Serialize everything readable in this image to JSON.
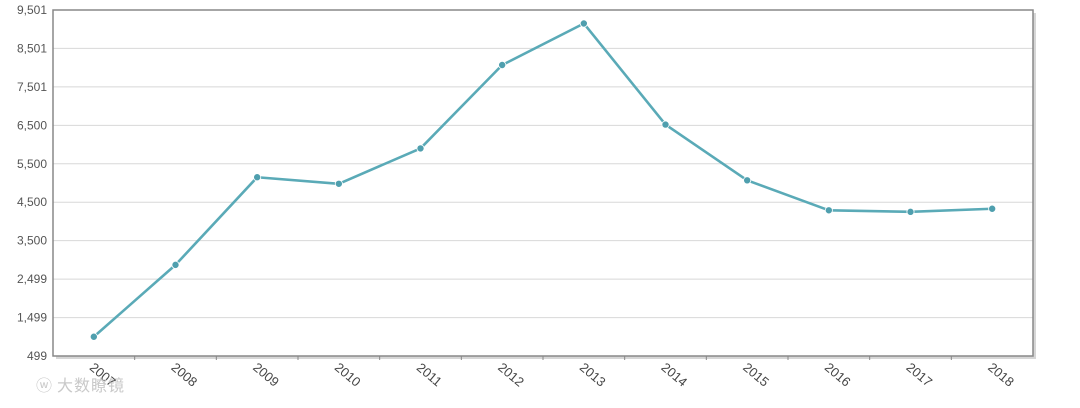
{
  "watermark": {
    "logo_icon": "weibo-icon",
    "text": "大数瞭镜"
  },
  "colors": {
    "series_line": "#5aaab7",
    "series_point": "#4f9fae",
    "plot_border": "#888888",
    "grid": "#d8d8d8"
  },
  "chart_data": {
    "type": "line",
    "title": "",
    "xlabel": "",
    "ylabel": "",
    "categories": [
      "2007",
      "2008",
      "2009",
      "2010",
      "2011",
      "2012",
      "2013",
      "2014",
      "2015",
      "2016",
      "2017",
      "2018"
    ],
    "series": [
      {
        "values": [
          1000,
          2870,
          5150,
          4980,
          5900,
          8070,
          9150,
          6520,
          5070,
          4290,
          4250,
          4330
        ]
      }
    ],
    "ylim": [
      499,
      9501
    ],
    "y_ticks": [
      499,
      1499,
      2499,
      3500,
      4500,
      5500,
      6500,
      7501,
      8501,
      9501
    ],
    "y_tick_labels": [
      "499",
      "1,499",
      "2,499",
      "3,500",
      "4,500",
      "5,500",
      "6,500",
      "7,501",
      "8,501",
      "9,501"
    ],
    "grid": true,
    "legend": "none"
  }
}
